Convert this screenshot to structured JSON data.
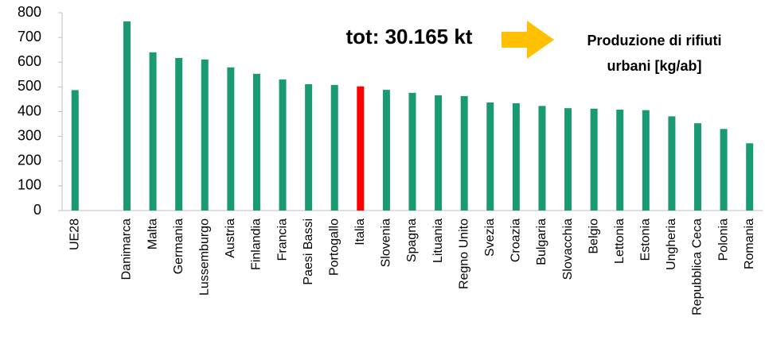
{
  "chart_data": {
    "type": "bar",
    "annotations": [
      "tot: 30.165 kt",
      "Produzione di rifiuti",
      "urbani [kg/ab]"
    ],
    "categories": [
      "UE28",
      null,
      "Danimarca",
      "Malta",
      "Germania",
      "Lussemburgo",
      "Austria",
      "Finlandia",
      "Francia",
      "Paesi Bassi",
      "Portogallo",
      "Italia",
      "Slovenia",
      "Spagna",
      "Lituania",
      "Regno Unito",
      "Svezia",
      "Croazia",
      "Bulgaria",
      "Slovacchia",
      "Belgio",
      "Lettonia",
      "Estonia",
      "Ungheria",
      "Repubblica Ceca",
      "Polonia",
      "Romania"
    ],
    "values": [
      487,
      null,
      765,
      640,
      617,
      611,
      579,
      553,
      530,
      511,
      508,
      502,
      488,
      476,
      466,
      463,
      437,
      434,
      423,
      414,
      412,
      408,
      406,
      381,
      353,
      330,
      272
    ],
    "colors": [
      "#1a9a73",
      null,
      "#1a9a73",
      "#1a9a73",
      "#1a9a73",
      "#1a9a73",
      "#1a9a73",
      "#1a9a73",
      "#1a9a73",
      "#1a9a73",
      "#1a9a73",
      "#ff0000",
      "#1a9a73",
      "#1a9a73",
      "#1a9a73",
      "#1a9a73",
      "#1a9a73",
      "#1a9a73",
      "#1a9a73",
      "#1a9a73",
      "#1a9a73",
      "#1a9a73",
      "#1a9a73",
      "#1a9a73",
      "#1a9a73",
      "#1a9a73",
      "#1a9a73"
    ],
    "ylim": [
      0,
      800
    ],
    "yticks": [
      0,
      100,
      200,
      300,
      400,
      500,
      600,
      700,
      800
    ],
    "grid": false
  }
}
